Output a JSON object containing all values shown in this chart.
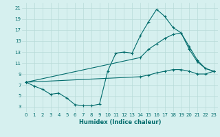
{
  "xlabel": "Humidex (Indice chaleur)",
  "bg_color": "#d6f0ef",
  "grid_color": "#b8dbd9",
  "line_color": "#006b6b",
  "xlim": [
    -0.5,
    23.5
  ],
  "ylim": [
    2,
    22
  ],
  "xticks": [
    0,
    1,
    2,
    3,
    4,
    5,
    6,
    7,
    8,
    9,
    10,
    11,
    12,
    13,
    14,
    15,
    16,
    17,
    18,
    19,
    20,
    21,
    22,
    23
  ],
  "yticks": [
    3,
    5,
    7,
    9,
    11,
    13,
    15,
    17,
    19,
    21
  ],
  "line1_x": [
    0,
    1,
    2,
    3,
    4,
    5,
    6,
    7,
    8,
    9,
    10,
    11,
    12,
    13,
    14,
    15,
    16,
    17,
    18,
    19,
    20,
    21,
    22,
    23
  ],
  "line1_y": [
    7.5,
    6.8,
    6.2,
    5.3,
    5.5,
    4.6,
    3.4,
    3.2,
    3.2,
    3.5,
    9.5,
    12.8,
    13.0,
    12.8,
    16.0,
    18.5,
    20.8,
    19.5,
    17.5,
    16.5,
    13.5,
    11.2,
    10.0,
    9.5
  ],
  "line2_x": [
    0,
    14,
    15,
    16,
    17,
    18,
    19,
    20,
    21,
    22,
    23
  ],
  "line2_y": [
    7.5,
    12.0,
    13.5,
    14.5,
    15.5,
    16.2,
    16.5,
    14.0,
    11.5,
    10.0,
    9.5
  ],
  "line3_x": [
    0,
    14,
    15,
    16,
    17,
    18,
    19,
    20,
    21,
    22,
    23
  ],
  "line3_y": [
    7.5,
    8.5,
    8.8,
    9.2,
    9.5,
    9.8,
    9.8,
    9.5,
    9.0,
    9.0,
    9.5
  ]
}
